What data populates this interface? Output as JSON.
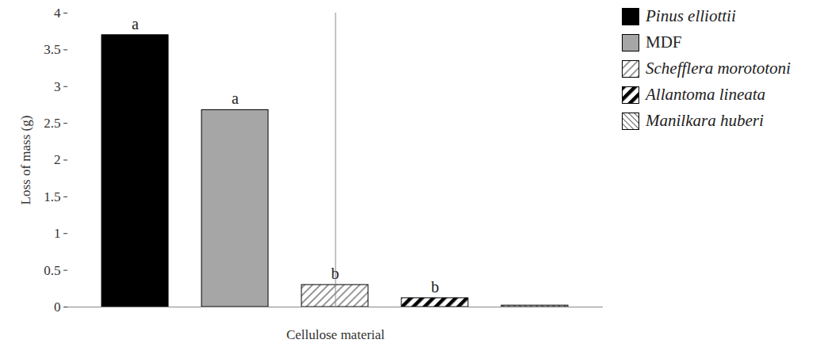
{
  "chart_data": {
    "type": "bar",
    "categories": [
      "Pinus elliottii",
      "MDF",
      "Schefflera morototoni",
      "Allantoma lineata",
      "Manilkara huberi"
    ],
    "values": [
      3.7,
      2.68,
      0.3,
      0.12,
      0.02
    ],
    "colors": [
      "#000000",
      "#a6a6a6",
      "#7f7f7f",
      "#000000",
      "#595959"
    ],
    "annotations": [
      "a",
      "a",
      "b",
      "b",
      null
    ],
    "x_label": "Cellulose material",
    "y_label": "Loss of mass (g)",
    "ylim": [
      0,
      4
    ],
    "yticks": [
      0,
      0.5,
      1,
      1.5,
      2,
      2.5,
      3,
      3.5,
      4
    ],
    "legend": "top-right",
    "tick_labels": "y",
    "grid": false
  }
}
